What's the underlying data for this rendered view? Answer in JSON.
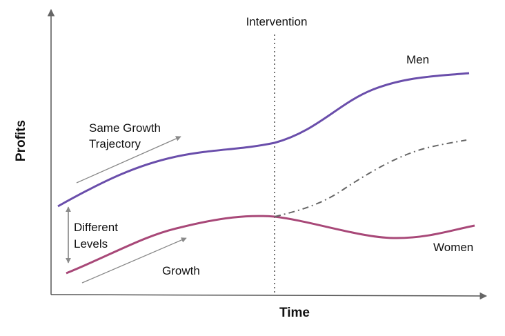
{
  "diagram": {
    "labels": {
      "intervention": "Intervention",
      "men": "Men",
      "women": "Women",
      "same_growth_line1": "Same Growth",
      "same_growth_line2": "Trajectory",
      "different_line1": "Different",
      "different_line2": "Levels",
      "growth": "Growth",
      "x_axis": "Time",
      "y_axis": "Profits"
    },
    "colors": {
      "men": "#6a4eab",
      "women": "#a84878",
      "counterfactual": "#666666",
      "axis": "#555555",
      "arrows": "#888888"
    }
  }
}
